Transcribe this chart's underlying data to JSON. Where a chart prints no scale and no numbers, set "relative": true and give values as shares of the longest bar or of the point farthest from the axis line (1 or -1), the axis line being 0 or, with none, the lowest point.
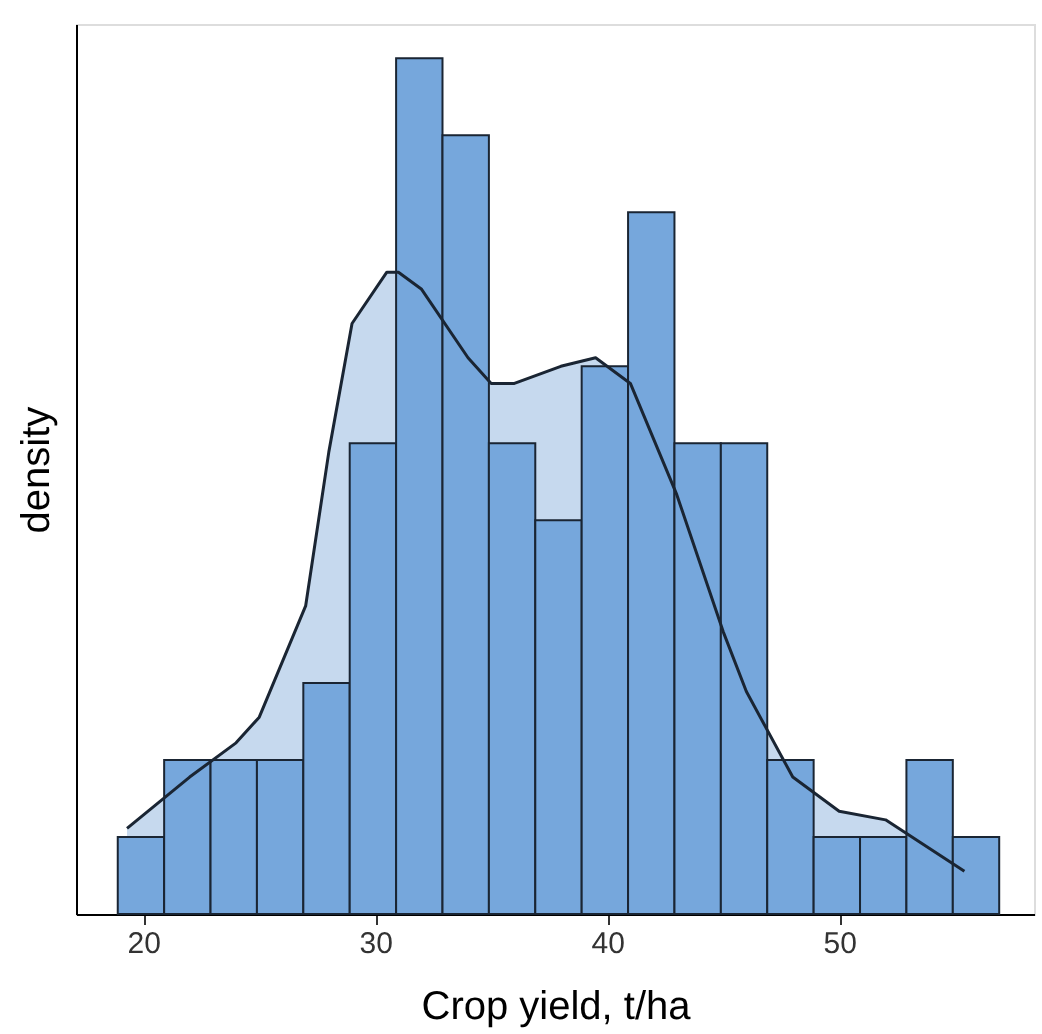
{
  "chart_data": {
    "type": "histogram",
    "relative": true,
    "xlabel": "Crop yield, t/ha",
    "ylabel": "density",
    "color": "#76a7dc",
    "bins": [
      18.9,
      20.9,
      22.9,
      24.9,
      26.9,
      28.9,
      30.9,
      32.9,
      34.9,
      36.9,
      38.9,
      40.9,
      42.9,
      44.9,
      46.9,
      48.9,
      50.9,
      52.9,
      54.9,
      56.9
    ],
    "values": [
      0.09,
      0.18,
      0.18,
      0.18,
      0.27,
      0.55,
      1.0,
      0.91,
      0.55,
      0.46,
      0.64,
      0.82,
      0.55,
      0.55,
      0.18,
      0.09,
      0.09,
      0.18,
      0.09
    ],
    "series": [
      {
        "type": "area",
        "color": "#c6d9ee",
        "x": [
          19.3,
          22,
          24,
          25,
          27,
          28,
          29,
          30.5,
          31,
          32,
          34,
          35,
          36,
          38,
          39.5,
          41,
          43,
          45,
          46,
          48,
          50,
          52,
          55.4
        ],
        "values": [
          0.1,
          0.16,
          0.2,
          0.23,
          0.36,
          0.54,
          0.69,
          0.75,
          0.75,
          0.73,
          0.65,
          0.62,
          0.62,
          0.64,
          0.65,
          0.62,
          0.49,
          0.33,
          0.26,
          0.16,
          0.12,
          0.11,
          0.05
        ]
      }
    ],
    "xlim": [
      17.1,
      58.4
    ],
    "xticks": [
      20,
      30,
      40,
      50
    ],
    "grid": false
  }
}
